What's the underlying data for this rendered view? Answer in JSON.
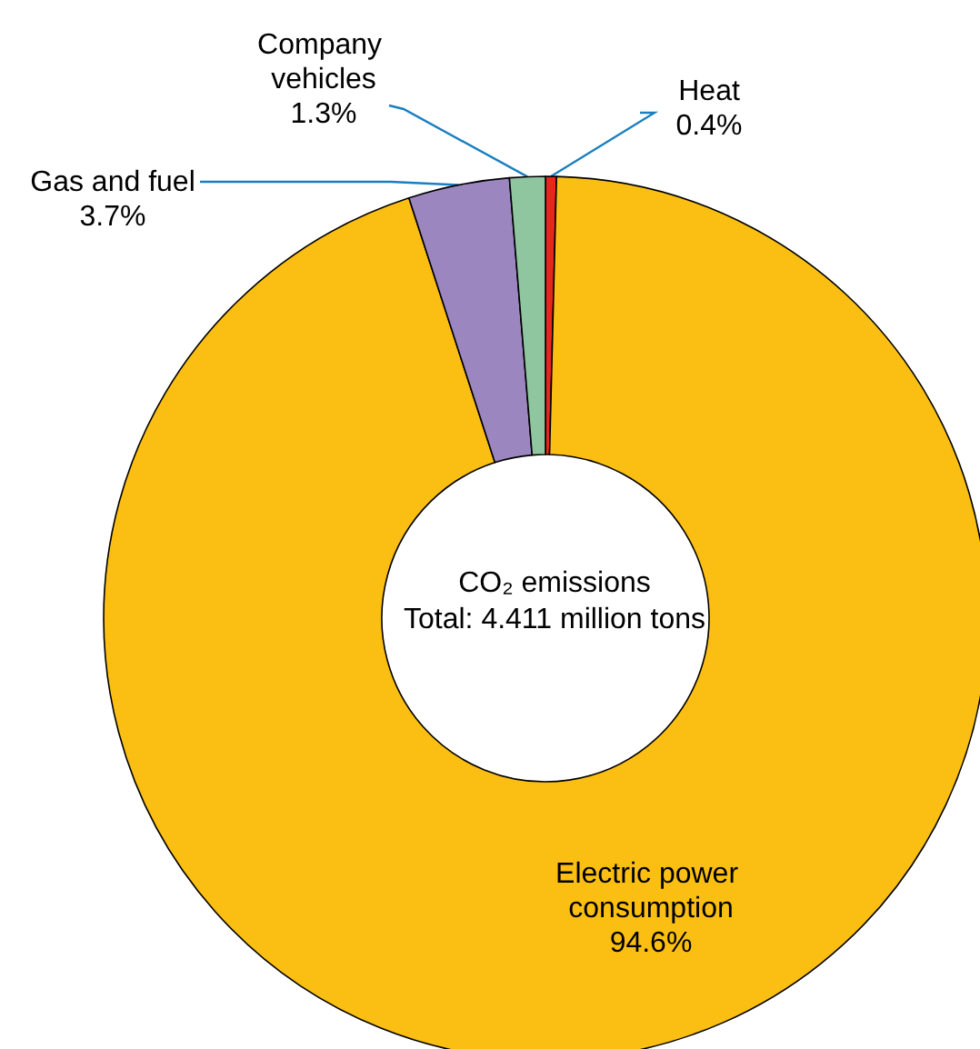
{
  "chart_data": {
    "type": "donut",
    "title": "CO₂ emissions",
    "subtitle": "Total: 4.411 million tons",
    "categories": [
      "Heat",
      "Electric power consumption",
      "Gas and fuel",
      "Company vehicles"
    ],
    "values": [
      0.4,
      94.6,
      3.7,
      1.3
    ],
    "colors": [
      "#e8251f",
      "#fbbf13",
      "#9b86c0",
      "#8fc6a0"
    ],
    "value_labels": [
      "0.4%",
      "94.6%",
      "3.7%",
      "1.3%"
    ],
    "legend": false
  }
}
